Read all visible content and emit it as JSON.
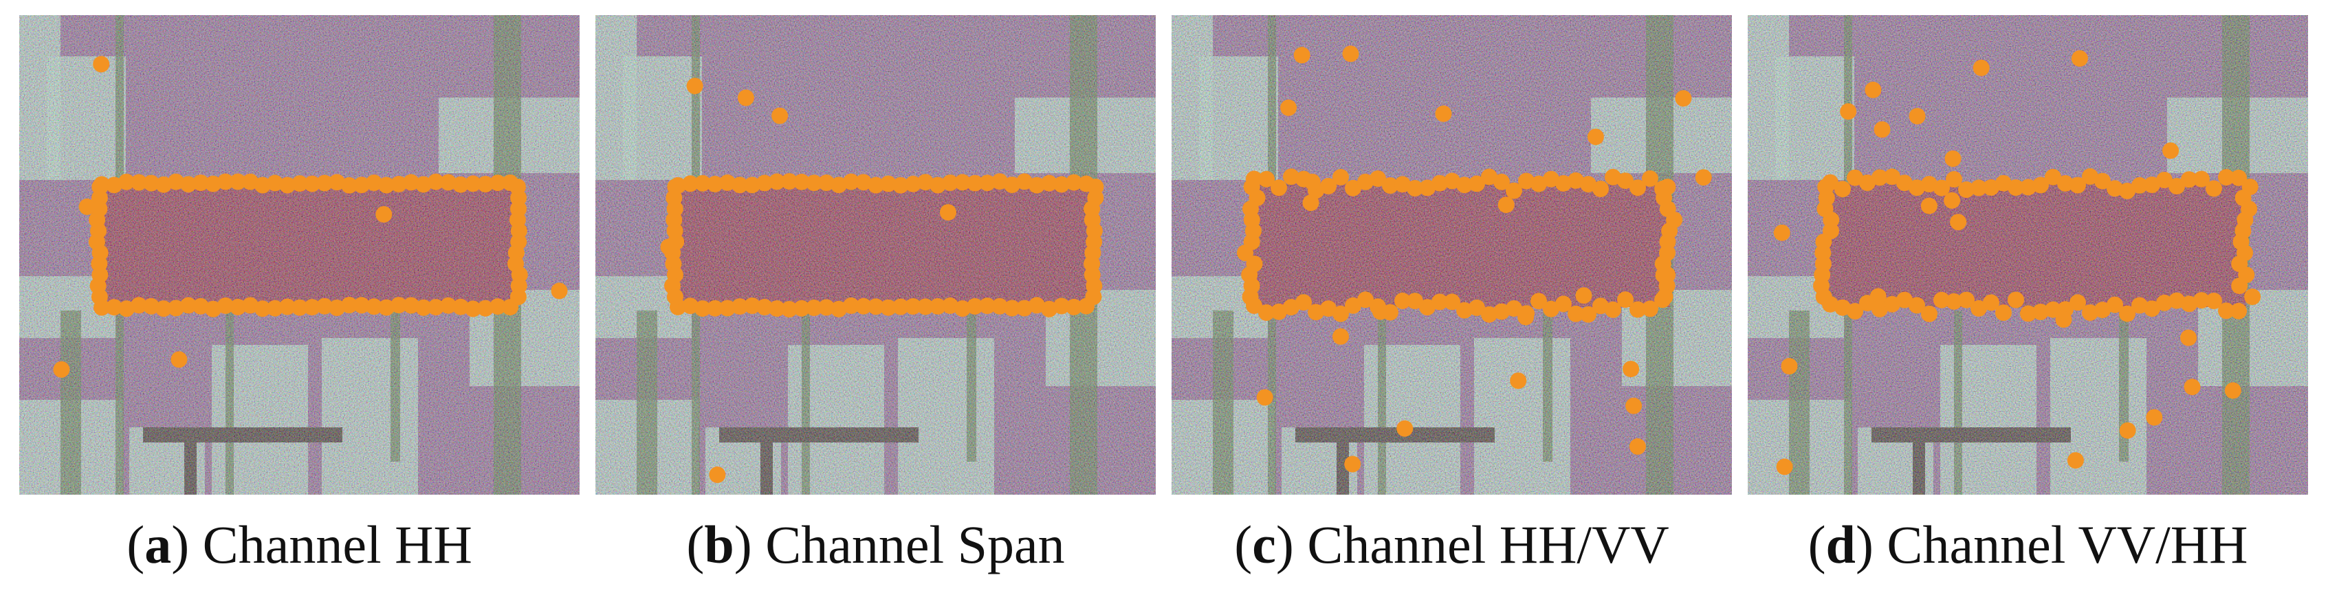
{
  "colors": {
    "sar_purple": "#8a5a90",
    "sar_cyan": "#b8e0d2",
    "sar_red": "#8e1538",
    "road_dark": "#2a1a16",
    "green_strip": "#4a6a3a",
    "marker_orange": "#f39322"
  },
  "panels": [
    {
      "letter": "a",
      "caption": "Channel HH"
    },
    {
      "letter": "b",
      "caption": "Channel Span"
    },
    {
      "letter": "c",
      "caption": "Channel HH/VV"
    },
    {
      "letter": "d",
      "caption": "Channel VV/HH"
    }
  ]
}
